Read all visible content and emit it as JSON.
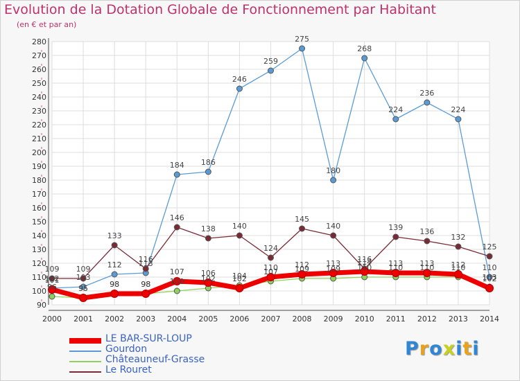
{
  "header": {
    "title": "Evolution de la Dotation Globale de Fonctionnement par Habitant",
    "subtitle": "(en € et par an)"
  },
  "logo": {
    "text": "Proxiti",
    "colors": [
      "#2e86d4",
      "#e8a21c",
      "#2e86d4",
      "#c8d21e",
      "#2e86d4",
      "#e8a21c",
      "#2e86d4"
    ]
  },
  "chart_data": {
    "type": "line",
    "title": "Evolution de la Dotation Globale de Fonctionnement par Habitant",
    "subtitle": "(en € et par an)",
    "x": [
      2000,
      2001,
      2002,
      2003,
      2004,
      2005,
      2006,
      2007,
      2008,
      2009,
      2010,
      2011,
      2012,
      2013,
      2014
    ],
    "ylim": [
      90,
      280
    ],
    "yticks": [
      90,
      100,
      110,
      120,
      130,
      140,
      150,
      160,
      170,
      180,
      190,
      200,
      210,
      220,
      230,
      240,
      250,
      260,
      270,
      280
    ],
    "grid": true,
    "legend_position": "bottom-left",
    "series": [
      {
        "name": "Gourdon",
        "color": "#5b9bd5",
        "width": 1.3,
        "marker": 4,
        "values": [
          102,
          103,
          112,
          113,
          184,
          186,
          246,
          259,
          275,
          180,
          268,
          224,
          236,
          224,
          110
        ],
        "labels": [
          "102",
          "103",
          "112",
          "113",
          "184",
          "186",
          "246",
          "259",
          "275",
          "180",
          "268",
          "224",
          "236",
          "224",
          "110"
        ]
      },
      {
        "name": "Le Rouret",
        "color": "#7a2a35",
        "width": 1.3,
        "marker": 4,
        "values": [
          109,
          109,
          133,
          116,
          146,
          138,
          140,
          124,
          145,
          140,
          116,
          139,
          136,
          132,
          125
        ],
        "labels": [
          "109",
          "109",
          "133",
          "116",
          "146",
          "138",
          "140",
          "124",
          "145",
          "140",
          "116",
          "139",
          "136",
          "132",
          "125"
        ]
      },
      {
        "name": "Châteauneuf-Grasse",
        "color": "#8fd15a",
        "width": 1.3,
        "marker": 4,
        "values": [
          96,
          95,
          98,
          98,
          100,
          102,
          104,
          107,
          109,
          109,
          110,
          110,
          110,
          110,
          103
        ],
        "labels": [
          "96",
          "95",
          "98",
          "98",
          "100",
          "102",
          "104",
          "107",
          "109",
          "109",
          "110",
          "110",
          "110",
          "110",
          "103"
        ]
      },
      {
        "name": "LE BAR-SUR-LOUP",
        "color": "#ee0000",
        "width": 7,
        "marker": 5.5,
        "values": [
          101,
          95,
          98,
          98,
          107,
          106,
          102,
          110,
          112,
          113,
          114,
          113,
          113,
          112,
          102
        ],
        "labels": [
          "101",
          "95",
          "98",
          "98",
          "107",
          "106",
          "102",
          "110",
          "112",
          "113",
          "114",
          "113",
          "113",
          "112",
          "102"
        ]
      }
    ],
    "legend": [
      {
        "name": "LE BAR-SUR-LOUP",
        "color": "#ee0000",
        "thick": true
      },
      {
        "name": "Gourdon",
        "color": "#5b9bd5",
        "thick": false
      },
      {
        "name": "Châteauneuf-Grasse",
        "color": "#8fd15a",
        "thick": false
      },
      {
        "name": "Le Rouret",
        "color": "#7a2a35",
        "thick": false
      }
    ]
  }
}
